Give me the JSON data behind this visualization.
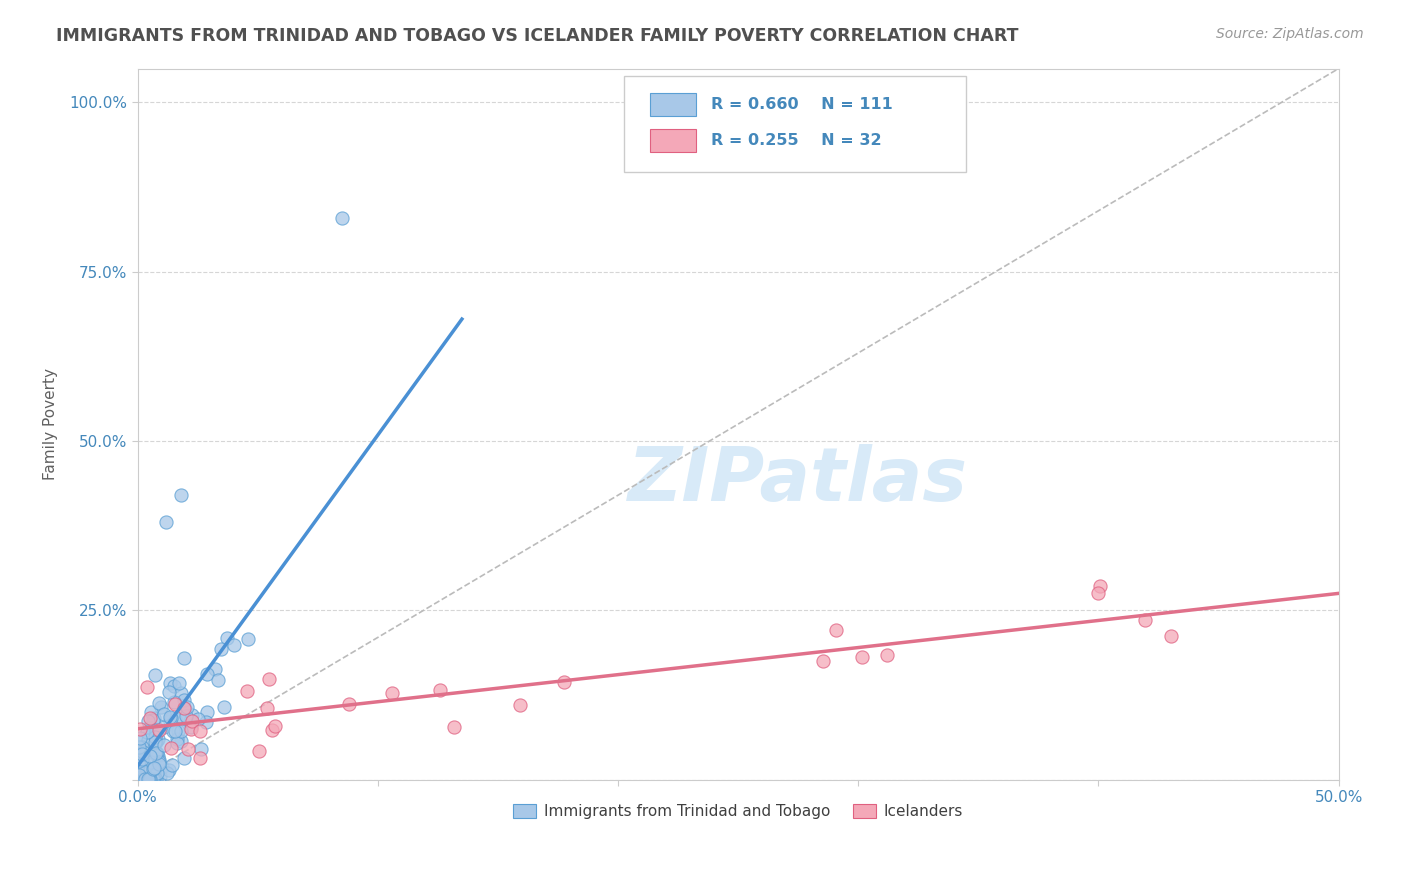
{
  "title": "IMMIGRANTS FROM TRINIDAD AND TOBAGO VS ICELANDER FAMILY POVERTY CORRELATION CHART",
  "source": "Source: ZipAtlas.com",
  "ylabel": "Family Poverty",
  "xlim": [
    0,
    0.5
  ],
  "ylim": [
    0,
    1.05
  ],
  "series1_color": "#a8c8e8",
  "series1_edge": "#5a9fd4",
  "series2_color": "#f4a8b8",
  "series2_edge": "#e06080",
  "series1_label": "Immigrants from Trinidad and Tobago",
  "series2_label": "Icelanders",
  "R1": 0.66,
  "N1": 111,
  "R2": 0.255,
  "N2": 32,
  "trend1_color": "#4a90d4",
  "trend2_color": "#e0708a",
  "watermark_color": "#d8eaf8",
  "background_color": "#ffffff",
  "grid_color": "#cccccc",
  "title_color": "#505050",
  "axis_label_color": "#606060",
  "tick_color": "#4488bb"
}
